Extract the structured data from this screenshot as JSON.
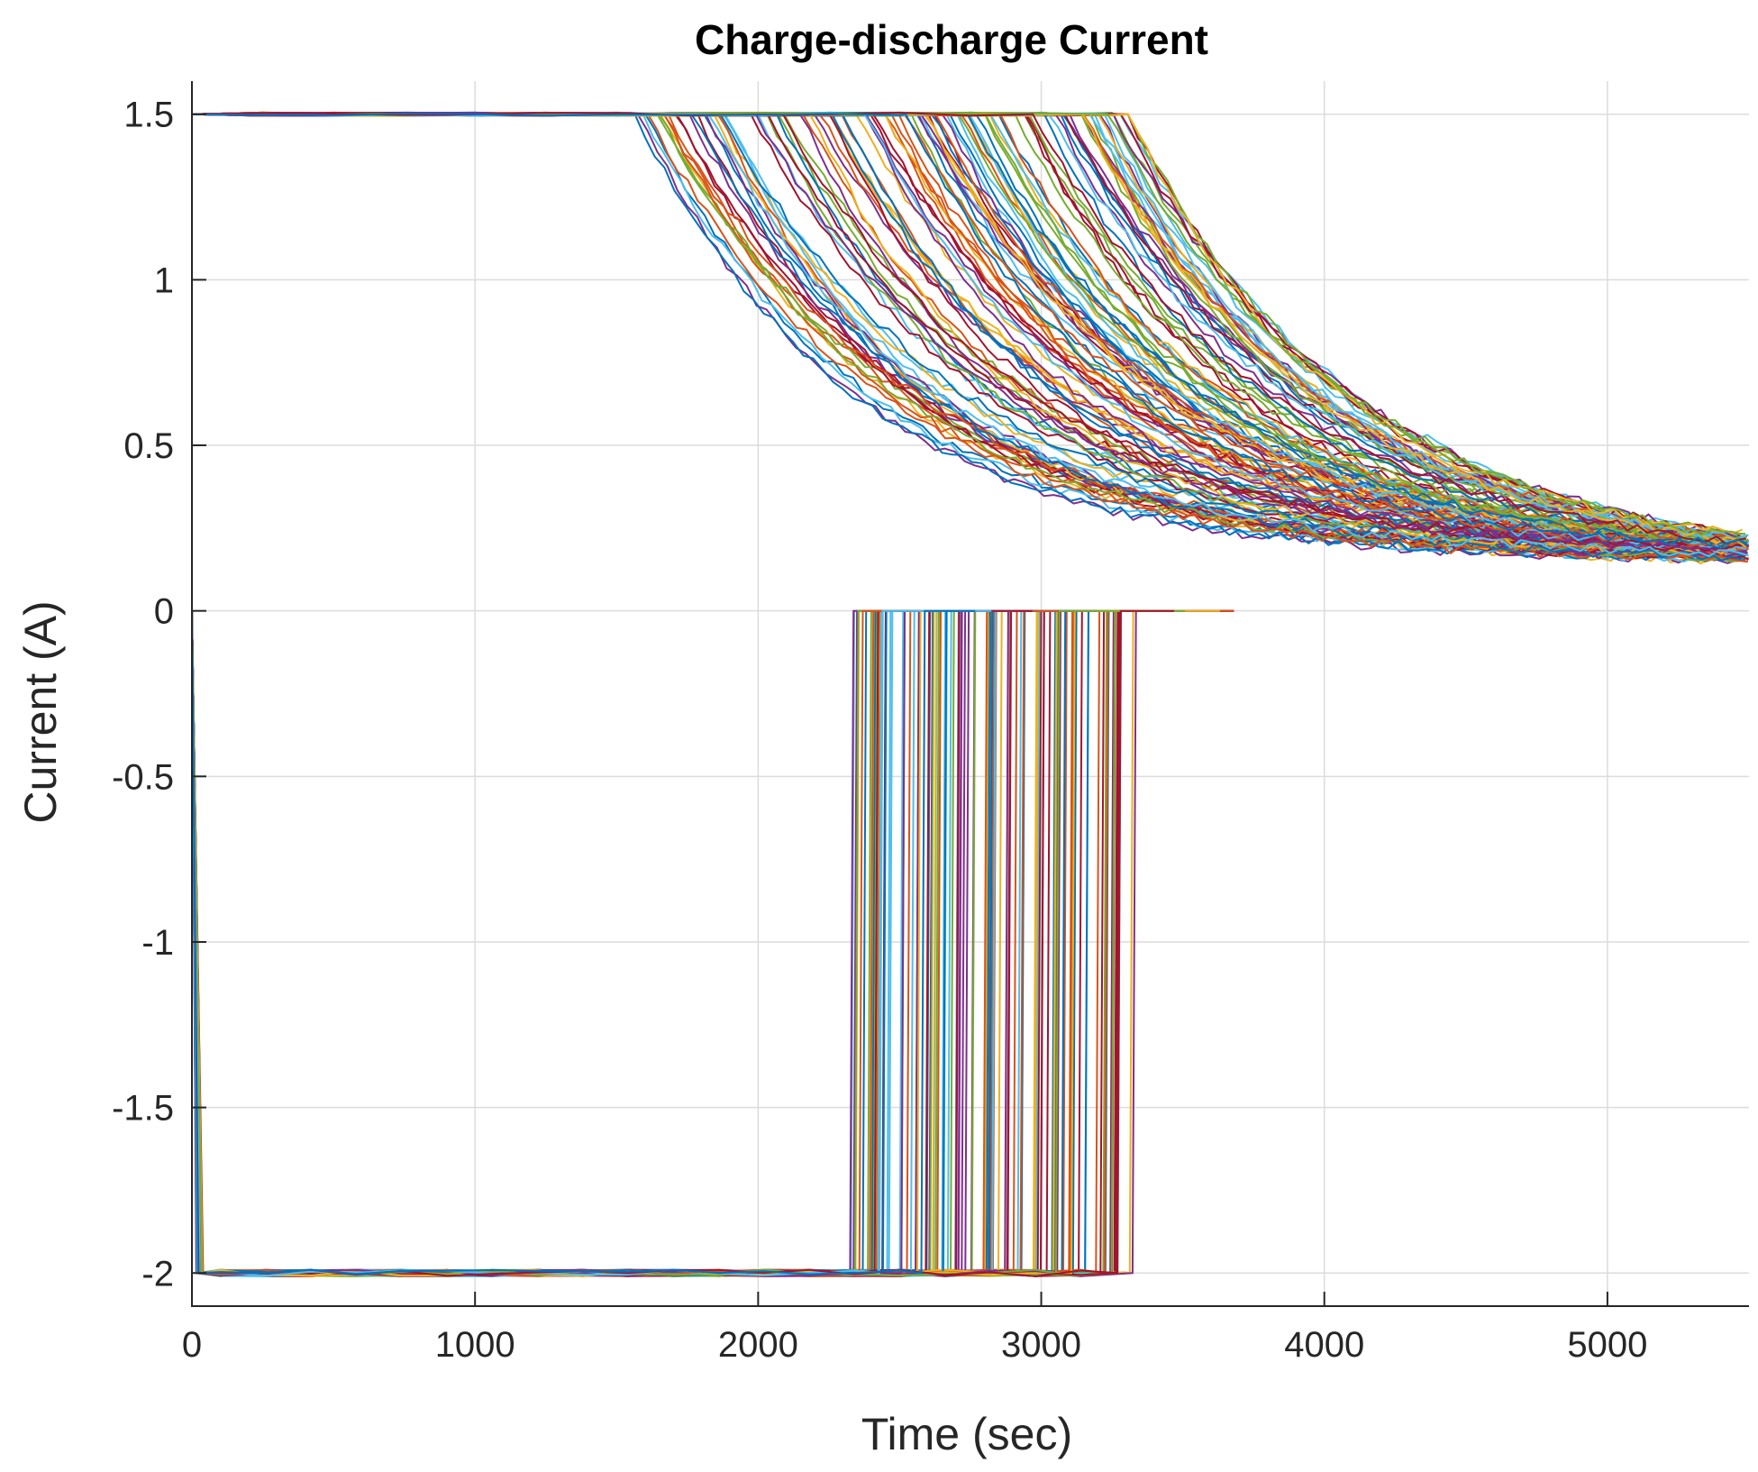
{
  "chart_data": {
    "type": "line",
    "title": "Charge-discharge Current",
    "xlabel": "Time (sec)",
    "ylabel": "Current (A)",
    "xlim": [
      0,
      5500
    ],
    "ylim": [
      -2.1,
      1.6
    ],
    "x_ticks": [
      0,
      1000,
      2000,
      3000,
      4000,
      5000
    ],
    "x_tick_labels": [
      "0",
      "1000",
      "2000",
      "3000",
      "4000",
      "5000"
    ],
    "y_ticks": [
      -2,
      -1.5,
      -1,
      -0.5,
      0,
      0.5,
      1,
      1.5
    ],
    "y_tick_labels": [
      "-2",
      "-1.5",
      "-1",
      "-0.5",
      "0",
      "0.5",
      "1",
      "1.5"
    ],
    "grid": true,
    "legend": "none",
    "series_count": 120,
    "charge_current": 1.5,
    "discharge_current": -2,
    "rest_current": 0,
    "cv_taper_start_time_range": [
      1550,
      3320
    ],
    "cv_tail_current_range_at_5500s": [
      0.15,
      0.22
    ],
    "discharge_end_time_range": [
      2310,
      3360
    ],
    "rest_end_time_max": 3680,
    "representative_series": [
      {
        "phase": "discharge",
        "x": [
          0,
          30,
          2310,
          2320,
          3000
        ],
        "y": [
          0,
          -2,
          -2,
          0,
          0
        ]
      },
      {
        "phase": "discharge",
        "x": [
          0,
          30,
          3350,
          3360,
          3680
        ],
        "y": [
          0,
          -2,
          -2,
          0,
          0
        ]
      },
      {
        "phase": "charge",
        "x": [
          0,
          1550,
          1800,
          2100,
          2450,
          2700,
          3000,
          3500,
          4000,
          4500,
          5000,
          5500
        ],
        "y": [
          1.5,
          1.5,
          1.25,
          0.99,
          0.77,
          0.64,
          0.54,
          0.42,
          0.33,
          0.27,
          0.22,
          0.16
        ]
      },
      {
        "phase": "charge",
        "x": [
          0,
          3320,
          3500,
          3800,
          4100,
          4400,
          4700,
          5000,
          5500
        ],
        "y": [
          1.5,
          1.5,
          1.2,
          0.88,
          0.66,
          0.5,
          0.38,
          0.3,
          0.22
        ]
      }
    ],
    "palette": [
      "#0072BD",
      "#D95319",
      "#EDB120",
      "#7E2F8E",
      "#77AC30",
      "#4DBEEE",
      "#A2142F"
    ]
  }
}
